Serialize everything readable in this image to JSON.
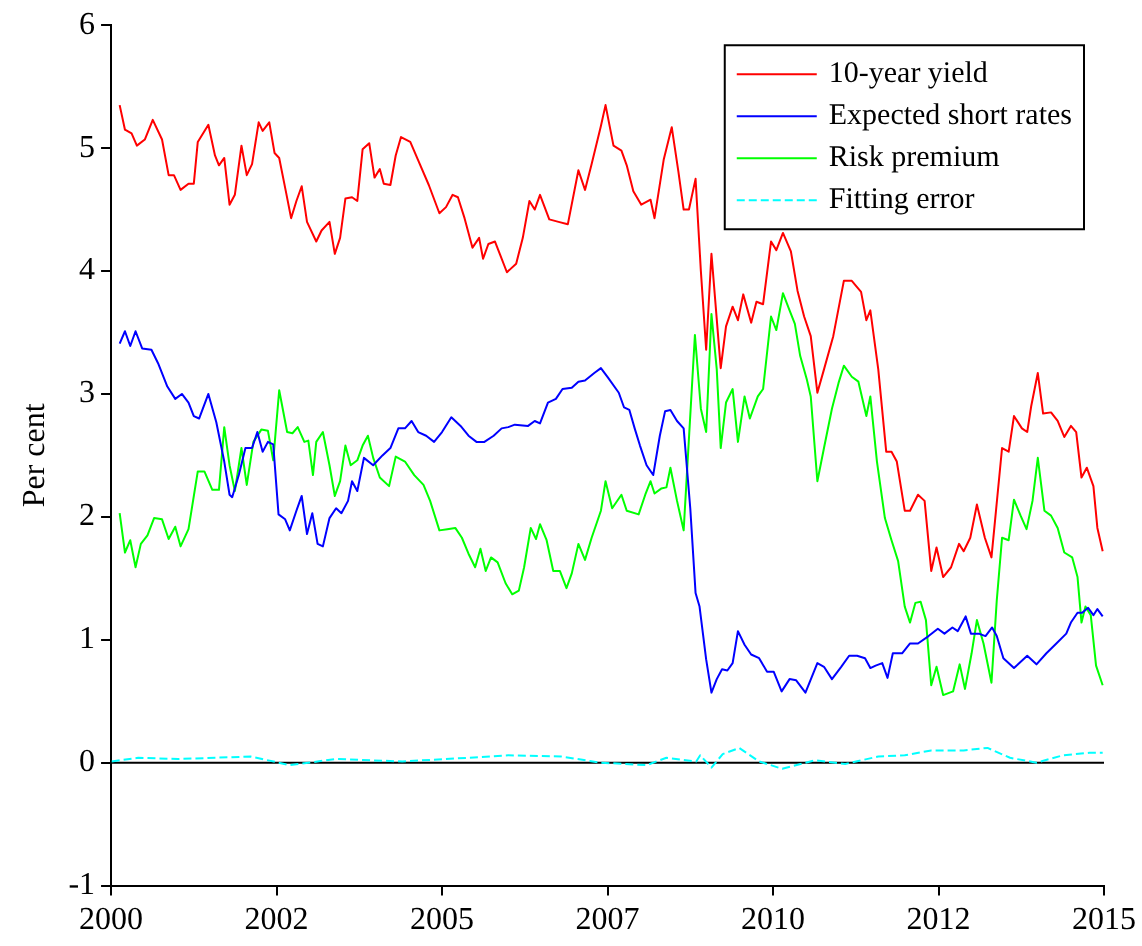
{
  "chart_data": {
    "type": "line",
    "ylabel": "Per cent",
    "xlim": [
      2000,
      2015
    ],
    "xticks": [
      2000,
      {
        "value": 2002.5,
        "label": "2002"
      },
      2005,
      {
        "value": 2007.5,
        "label": "2007"
      },
      2010,
      {
        "value": 2012.5,
        "label": "2012"
      },
      2015
    ],
    "ylim": [
      -1,
      6
    ],
    "yticks": [
      -1,
      0,
      1,
      2,
      3,
      4,
      5,
      6
    ],
    "legend": "top right",
    "marker": "none",
    "ref_lines": [
      {
        "axis": "y",
        "value": 0,
        "color": "#000000"
      }
    ],
    "series": [
      {
        "name": "10-year yield",
        "color": "#ff0000",
        "line_style": "solid",
        "x": [
          2000.13,
          2000.21,
          2000.31,
          2000.39,
          2000.51,
          2000.63,
          2000.77,
          2000.87,
          2000.95,
          2001.05,
          2001.17,
          2001.25,
          2001.31,
          2001.47,
          2001.57,
          2001.63,
          2001.71,
          2001.79,
          2001.87,
          2001.97,
          2002.05,
          2002.13,
          2002.23,
          2002.29,
          2002.39,
          2002.47,
          2002.54,
          2002.64,
          2002.72,
          2002.8,
          2002.88,
          2002.96,
          2003.1,
          2003.18,
          2003.3,
          2003.38,
          2003.46,
          2003.54,
          2003.64,
          2003.72,
          2003.8,
          2003.9,
          2003.98,
          2004.06,
          2004.12,
          2004.22,
          2004.3,
          2004.38,
          2004.52,
          2004.64,
          2004.8,
          2004.96,
          2005.06,
          2005.16,
          2005.24,
          2005.34,
          2005.46,
          2005.56,
          2005.62,
          2005.7,
          2005.8,
          2005.98,
          2006.12,
          2006.22,
          2006.32,
          2006.4,
          2006.48,
          2006.62,
          2006.76,
          2006.9,
          2007.06,
          2007.16,
          2007.26,
          2007.4,
          2007.47,
          2007.59,
          2007.71,
          2007.79,
          2007.89,
          2008.01,
          2008.15,
          2008.21,
          2008.35,
          2008.47,
          2008.57,
          2008.65,
          2008.73,
          2008.83,
          2008.91,
          2008.99,
          2009.07,
          2009.21,
          2009.29,
          2009.39,
          2009.47,
          2009.55,
          2009.67,
          2009.75,
          2009.85,
          2009.97,
          2010.05,
          2010.15,
          2010.27,
          2010.37,
          2010.47,
          2010.57,
          2010.67,
          2010.77,
          2010.91,
          2011.07,
          2011.19,
          2011.33,
          2011.41,
          2011.47,
          2011.59,
          2011.71,
          2011.79,
          2011.87,
          2011.99,
          2012.07,
          2012.19,
          2012.29,
          2012.39,
          2012.47,
          2012.57,
          2012.69,
          2012.81,
          2012.88,
          2012.98,
          2013.08,
          2013.2,
          2013.3,
          2013.46,
          2013.56,
          2013.64,
          2013.76,
          2013.84,
          2013.9,
          2014.0,
          2014.08,
          2014.2,
          2014.3,
          2014.4,
          2014.5,
          2014.58,
          2014.66,
          2014.74,
          2014.84,
          2014.9,
          2014.98
        ],
        "values": [
          5.35,
          5.15,
          5.12,
          5.02,
          5.07,
          5.23,
          5.07,
          4.78,
          4.78,
          4.66,
          4.71,
          4.71,
          5.05,
          5.19,
          4.94,
          4.86,
          4.92,
          4.54,
          4.62,
          5.02,
          4.78,
          4.87,
          5.21,
          5.14,
          5.21,
          4.96,
          4.92,
          4.65,
          4.43,
          4.57,
          4.69,
          4.4,
          4.24,
          4.33,
          4.4,
          4.14,
          4.27,
          4.59,
          4.6,
          4.57,
          4.99,
          5.04,
          4.76,
          4.83,
          4.71,
          4.7,
          4.94,
          5.09,
          5.05,
          4.9,
          4.7,
          4.47,
          4.52,
          4.62,
          4.6,
          4.43,
          4.19,
          4.27,
          4.1,
          4.22,
          4.24,
          3.99,
          4.06,
          4.27,
          4.57,
          4.5,
          4.62,
          4.42,
          4.4,
          4.38,
          4.82,
          4.66,
          4.87,
          5.18,
          5.35,
          5.02,
          4.98,
          4.86,
          4.65,
          4.54,
          4.58,
          4.43,
          4.91,
          5.17,
          4.81,
          4.5,
          4.5,
          4.75,
          4.0,
          3.36,
          4.14,
          3.21,
          3.55,
          3.71,
          3.6,
          3.81,
          3.58,
          3.75,
          3.73,
          4.24,
          4.17,
          4.31,
          4.16,
          3.84,
          3.63,
          3.47,
          3.01,
          3.2,
          3.47,
          3.92,
          3.92,
          3.83,
          3.6,
          3.68,
          3.2,
          2.53,
          2.53,
          2.45,
          2.05,
          2.05,
          2.18,
          2.13,
          1.56,
          1.75,
          1.51,
          1.59,
          1.78,
          1.72,
          1.83,
          2.1,
          1.83,
          1.67,
          2.56,
          2.53,
          2.82,
          2.72,
          2.69,
          2.9,
          3.17,
          2.84,
          2.85,
          2.78,
          2.65,
          2.74,
          2.69,
          2.32,
          2.4,
          2.25,
          1.91,
          1.72
        ]
      },
      {
        "name": "Expected short rates",
        "color": "#0000ff",
        "line_style": "solid",
        "x": [
          2000.13,
          2000.21,
          2000.29,
          2000.37,
          2000.47,
          2000.61,
          2000.71,
          2000.85,
          2000.97,
          2001.07,
          2001.17,
          2001.25,
          2001.33,
          2001.47,
          2001.59,
          2001.71,
          2001.79,
          2001.83,
          2001.93,
          2002.03,
          2002.13,
          2002.21,
          2002.29,
          2002.37,
          2002.45,
          2002.53,
          2002.63,
          2002.7,
          2002.8,
          2002.88,
          2002.96,
          2003.04,
          2003.12,
          2003.2,
          2003.3,
          2003.4,
          2003.48,
          2003.58,
          2003.64,
          2003.72,
          2003.82,
          2003.96,
          2004.1,
          2004.22,
          2004.34,
          2004.44,
          2004.54,
          2004.64,
          2004.76,
          2004.88,
          2005.0,
          2005.14,
          2005.28,
          2005.4,
          2005.52,
          2005.64,
          2005.78,
          2005.9,
          2006.0,
          2006.1,
          2006.3,
          2006.4,
          2006.48,
          2006.6,
          2006.72,
          2006.82,
          2006.96,
          2007.06,
          2007.16,
          2007.3,
          2007.4,
          2007.51,
          2007.67,
          2007.75,
          2007.83,
          2007.91,
          2007.99,
          2008.09,
          2008.19,
          2008.29,
          2008.37,
          2008.45,
          2008.55,
          2008.65,
          2008.75,
          2008.83,
          2008.89,
          2008.99,
          2009.07,
          2009.15,
          2009.23,
          2009.31,
          2009.39,
          2009.47,
          2009.57,
          2009.67,
          2009.79,
          2009.91,
          2010.01,
          2010.13,
          2010.25,
          2010.35,
          2010.49,
          2010.67,
          2010.77,
          2010.89,
          2011.03,
          2011.15,
          2011.27,
          2011.39,
          2011.47,
          2011.55,
          2011.65,
          2011.73,
          2011.81,
          2011.95,
          2012.07,
          2012.19,
          2012.35,
          2012.49,
          2012.59,
          2012.71,
          2012.79,
          2012.91,
          2012.99,
          2013.11,
          2013.21,
          2013.31,
          2013.38,
          2013.48,
          2013.64,
          2013.84,
          2013.98,
          2014.13,
          2014.28,
          2014.43,
          2014.5,
          2014.6,
          2014.67,
          2014.76,
          2014.84,
          2014.9,
          2014.98
        ],
        "values": [
          3.41,
          3.51,
          3.39,
          3.51,
          3.37,
          3.36,
          3.25,
          3.06,
          2.96,
          3.0,
          2.93,
          2.82,
          2.8,
          3.0,
          2.77,
          2.45,
          2.18,
          2.16,
          2.34,
          2.56,
          2.56,
          2.69,
          2.53,
          2.61,
          2.59,
          2.02,
          1.98,
          1.89,
          2.05,
          2.17,
          1.86,
          2.03,
          1.78,
          1.76,
          1.99,
          2.07,
          2.03,
          2.13,
          2.29,
          2.21,
          2.48,
          2.42,
          2.5,
          2.56,
          2.72,
          2.72,
          2.78,
          2.69,
          2.66,
          2.61,
          2.69,
          2.81,
          2.74,
          2.66,
          2.61,
          2.61,
          2.66,
          2.72,
          2.73,
          2.75,
          2.74,
          2.78,
          2.76,
          2.93,
          2.96,
          3.04,
          3.05,
          3.1,
          3.11,
          3.17,
          3.21,
          3.13,
          3.01,
          2.89,
          2.87,
          2.72,
          2.58,
          2.42,
          2.34,
          2.66,
          2.86,
          2.87,
          2.78,
          2.72,
          2.07,
          1.38,
          1.27,
          0.84,
          0.57,
          0.68,
          0.76,
          0.75,
          0.81,
          1.07,
          0.96,
          0.88,
          0.85,
          0.74,
          0.74,
          0.58,
          0.68,
          0.67,
          0.57,
          0.81,
          0.78,
          0.68,
          0.78,
          0.87,
          0.87,
          0.85,
          0.77,
          0.79,
          0.81,
          0.69,
          0.89,
          0.89,
          0.97,
          0.97,
          1.03,
          1.09,
          1.05,
          1.1,
          1.07,
          1.19,
          1.05,
          1.05,
          1.03,
          1.1,
          1.03,
          0.85,
          0.77,
          0.87,
          0.8,
          0.89,
          0.97,
          1.05,
          1.14,
          1.22,
          1.22,
          1.26,
          1.2,
          1.25,
          1.19
        ]
      },
      {
        "name": "Risk premium",
        "color": "#00ff00",
        "line_style": "solid",
        "x": [
          2000.13,
          2000.21,
          2000.29,
          2000.37,
          2000.45,
          2000.55,
          2000.65,
          2000.77,
          2000.87,
          2000.97,
          2001.05,
          2001.17,
          2001.31,
          2001.41,
          2001.53,
          2001.63,
          2001.71,
          2001.79,
          2001.87,
          2001.97,
          2002.05,
          2002.15,
          2002.27,
          2002.37,
          2002.45,
          2002.54,
          2002.66,
          2002.74,
          2002.82,
          2002.92,
          2002.98,
          2003.05,
          2003.1,
          2003.2,
          2003.3,
          2003.38,
          2003.46,
          2003.54,
          2003.62,
          2003.72,
          2003.8,
          2003.88,
          2003.96,
          2004.06,
          2004.2,
          2004.3,
          2004.44,
          2004.58,
          2004.72,
          2004.82,
          2004.96,
          2005.08,
          2005.2,
          2005.3,
          2005.4,
          2005.5,
          2005.58,
          2005.66,
          2005.74,
          2005.84,
          2005.96,
          2006.06,
          2006.16,
          2006.24,
          2006.34,
          2006.42,
          2006.48,
          2006.58,
          2006.68,
          2006.78,
          2006.88,
          2006.96,
          2007.06,
          2007.16,
          2007.26,
          2007.4,
          2007.47,
          2007.57,
          2007.71,
          2007.79,
          2007.97,
          2008.07,
          2008.15,
          2008.21,
          2008.31,
          2008.39,
          2008.45,
          2008.55,
          2008.65,
          2008.82,
          2008.91,
          2008.99,
          2009.07,
          2009.15,
          2009.21,
          2009.29,
          2009.39,
          2009.47,
          2009.57,
          2009.65,
          2009.77,
          2009.85,
          2009.97,
          2010.05,
          2010.15,
          2010.25,
          2010.33,
          2010.41,
          2010.51,
          2010.57,
          2010.67,
          2010.77,
          2010.89,
          2010.99,
          2011.07,
          2011.19,
          2011.29,
          2011.41,
          2011.47,
          2011.57,
          2011.69,
          2011.79,
          2011.89,
          2011.99,
          2012.07,
          2012.15,
          2012.23,
          2012.31,
          2012.39,
          2012.47,
          2012.57,
          2012.72,
          2012.82,
          2012.9,
          2013.0,
          2013.08,
          2013.18,
          2013.3,
          2013.38,
          2013.46,
          2013.56,
          2013.64,
          2013.74,
          2013.83,
          2013.92,
          2014.0,
          2014.1,
          2014.2,
          2014.3,
          2014.4,
          2014.52,
          2014.6,
          2014.66,
          2014.72,
          2014.8,
          2014.88,
          2014.98
        ],
        "values": [
          2.03,
          1.71,
          1.81,
          1.59,
          1.78,
          1.85,
          1.99,
          1.98,
          1.82,
          1.92,
          1.76,
          1.9,
          2.37,
          2.37,
          2.22,
          2.22,
          2.73,
          2.42,
          2.21,
          2.56,
          2.26,
          2.61,
          2.71,
          2.7,
          2.46,
          3.03,
          2.69,
          2.68,
          2.73,
          2.61,
          2.62,
          2.34,
          2.61,
          2.69,
          2.42,
          2.17,
          2.29,
          2.58,
          2.42,
          2.46,
          2.58,
          2.66,
          2.48,
          2.32,
          2.25,
          2.49,
          2.45,
          2.34,
          2.26,
          2.13,
          1.89,
          1.9,
          1.91,
          1.83,
          1.7,
          1.59,
          1.74,
          1.56,
          1.67,
          1.63,
          1.46,
          1.37,
          1.4,
          1.59,
          1.91,
          1.82,
          1.94,
          1.81,
          1.56,
          1.56,
          1.42,
          1.54,
          1.78,
          1.65,
          1.83,
          2.05,
          2.29,
          2.07,
          2.18,
          2.05,
          2.02,
          2.18,
          2.29,
          2.19,
          2.23,
          2.24,
          2.4,
          2.13,
          1.89,
          3.48,
          2.88,
          2.69,
          3.65,
          3.2,
          2.56,
          2.93,
          3.04,
          2.61,
          2.98,
          2.8,
          2.98,
          3.04,
          3.63,
          3.52,
          3.82,
          3.68,
          3.57,
          3.31,
          3.12,
          2.98,
          2.29,
          2.56,
          2.88,
          3.09,
          3.23,
          3.14,
          3.1,
          2.82,
          2.98,
          2.45,
          1.99,
          1.81,
          1.64,
          1.27,
          1.14,
          1.3,
          1.31,
          1.16,
          0.63,
          0.78,
          0.55,
          0.58,
          0.8,
          0.6,
          0.89,
          1.16,
          0.97,
          0.65,
          1.32,
          1.83,
          1.81,
          2.14,
          2.01,
          1.9,
          2.13,
          2.48,
          2.05,
          2.01,
          1.91,
          1.71,
          1.67,
          1.51,
          1.14,
          1.27,
          1.2,
          0.79,
          0.63
        ]
      },
      {
        "name": "Fitting error",
        "color": "#00ffff",
        "line_style": "dashed",
        "x": [
          2000.01,
          2000.41,
          2001.01,
          2002.11,
          2002.7,
          2003.4,
          2004.4,
          2005.4,
          2006.0,
          2006.8,
          2007.4,
          2008.09,
          2008.39,
          2008.84,
          2008.9,
          2009.07,
          2009.24,
          2009.49,
          2009.79,
          2010.14,
          2010.64,
          2011.09,
          2011.59,
          2011.99,
          2012.39,
          2012.88,
          2013.24,
          2013.58,
          2013.98,
          2014.38,
          2014.78,
          2014.98
        ],
        "values": [
          0.01,
          0.04,
          0.03,
          0.05,
          -0.02,
          0.03,
          0.01,
          0.04,
          0.06,
          0.05,
          0.0,
          -0.02,
          0.04,
          0.01,
          0.06,
          -0.04,
          0.07,
          0.12,
          0.01,
          -0.05,
          0.02,
          -0.01,
          0.05,
          0.06,
          0.1,
          0.1,
          0.12,
          0.04,
          0.0,
          0.06,
          0.08,
          0.08
        ]
      }
    ]
  }
}
